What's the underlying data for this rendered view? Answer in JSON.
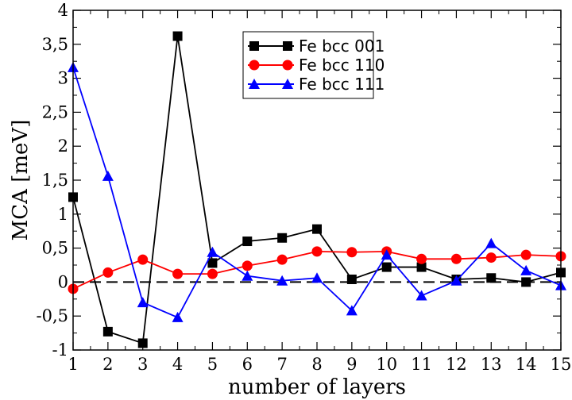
{
  "chart_data": {
    "type": "line",
    "title": "",
    "xlabel": "number of layers",
    "ylabel": "MCA [meV]",
    "x": [
      1,
      2,
      3,
      4,
      5,
      6,
      7,
      8,
      9,
      10,
      11,
      12,
      13,
      14,
      15
    ],
    "xlim": [
      1,
      15
    ],
    "ylim": [
      -1,
      4
    ],
    "xticks": [
      1,
      2,
      3,
      4,
      5,
      6,
      7,
      8,
      9,
      10,
      11,
      12,
      13,
      14,
      15
    ],
    "xtick_labels": [
      "1",
      "2",
      "3",
      "4",
      "5",
      "6",
      "7",
      "8",
      "9",
      "10",
      "11",
      "12",
      "13",
      "14",
      "15"
    ],
    "yticks": [
      -1,
      -0.5,
      0,
      0.5,
      1,
      1.5,
      2,
      2.5,
      3,
      3.5,
      4
    ],
    "ytick_labels": [
      "-1",
      "-0,5",
      "0",
      "0,5",
      "1",
      "1,5",
      "2",
      "2,5",
      "3",
      "3,5",
      "4"
    ],
    "grid": false,
    "reference_line": {
      "y": 0,
      "style": "dashed",
      "color": "#000000"
    },
    "legend_position": "top-center",
    "series": [
      {
        "name": "Fe bcc 001",
        "color": "#000000",
        "marker": "square",
        "values": [
          1.25,
          -0.73,
          -0.9,
          3.62,
          0.28,
          0.6,
          0.65,
          0.78,
          0.04,
          0.22,
          0.22,
          0.04,
          0.06,
          0.0,
          0.14
        ]
      },
      {
        "name": "Fe bcc 110",
        "color": "#ff0000",
        "marker": "circle",
        "values": [
          -0.1,
          0.14,
          0.33,
          0.12,
          0.12,
          0.24,
          0.33,
          0.45,
          0.44,
          0.45,
          0.34,
          0.34,
          0.36,
          0.4,
          0.38
        ]
      },
      {
        "name": "Fe bcc 111",
        "color": "#0000ff",
        "marker": "triangle",
        "values": [
          3.16,
          1.56,
          -0.3,
          -0.52,
          0.44,
          0.09,
          0.02,
          0.06,
          -0.42,
          0.4,
          -0.2,
          0.02,
          0.57,
          0.17,
          -0.05
        ]
      }
    ]
  }
}
